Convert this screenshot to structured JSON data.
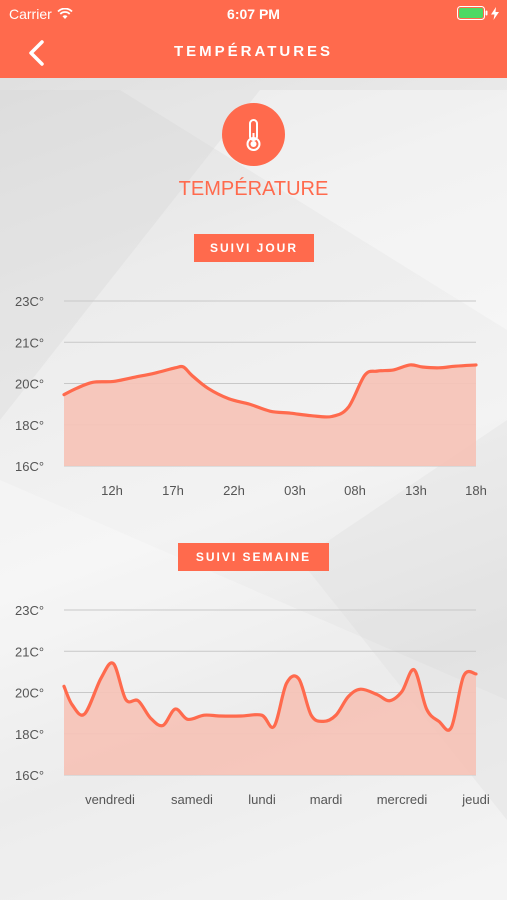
{
  "status_bar": {
    "carrier": "Carrier",
    "time": "6:07 PM"
  },
  "nav": {
    "title": "TEMPÉRATURES",
    "back_icon": "chevron-left-icon"
  },
  "hero": {
    "icon": "thermometer-icon",
    "title": "TEMPÉRATURE"
  },
  "colors": {
    "accent": "#ff6a4d",
    "fill": "#f5c4b8",
    "grid": "#c8c8c8"
  },
  "chart_data": [
    {
      "type": "area",
      "title": "SUIVI JOUR",
      "y_ticks": [
        "23C°",
        "21C°",
        "20C°",
        "18C°",
        "16C°"
      ],
      "x_ticks": [
        "12h",
        "17h",
        "22h",
        "03h",
        "08h",
        "13h",
        "18h"
      ],
      "ylim": [
        0,
        4
      ],
      "x_range": [
        0,
        100
      ],
      "points": [
        [
          0,
          1.73
        ],
        [
          3,
          1.88
        ],
        [
          7,
          2.03
        ],
        [
          12,
          2.05
        ],
        [
          17,
          2.15
        ],
        [
          22,
          2.25
        ],
        [
          27,
          2.38
        ],
        [
          29,
          2.4
        ],
        [
          31,
          2.2
        ],
        [
          35,
          1.88
        ],
        [
          40,
          1.63
        ],
        [
          45,
          1.5
        ],
        [
          50,
          1.33
        ],
        [
          55,
          1.28
        ],
        [
          60,
          1.22
        ],
        [
          65,
          1.2
        ],
        [
          69,
          1.42
        ],
        [
          73,
          2.2
        ],
        [
          76,
          2.3
        ],
        [
          80,
          2.33
        ],
        [
          84,
          2.45
        ],
        [
          87,
          2.4
        ],
        [
          91,
          2.38
        ],
        [
          95,
          2.42
        ],
        [
          100,
          2.45
        ]
      ]
    },
    {
      "type": "area",
      "title": "SUIVI SEMAINE",
      "y_ticks": [
        "23C°",
        "21C°",
        "20C°",
        "18C°",
        "16C°"
      ],
      "x_ticks": [
        "vendredi",
        "samedi",
        "lundi",
        "mardi",
        "mercredi",
        "jeudi"
      ],
      "ylim": [
        0,
        4
      ],
      "x_range": [
        0,
        100
      ],
      "points": [
        [
          0,
          2.15
        ],
        [
          2,
          1.7
        ],
        [
          5,
          1.48
        ],
        [
          9,
          2.35
        ],
        [
          12,
          2.7
        ],
        [
          15,
          1.83
        ],
        [
          18,
          1.8
        ],
        [
          21,
          1.38
        ],
        [
          24,
          1.2
        ],
        [
          27,
          1.6
        ],
        [
          30,
          1.35
        ],
        [
          34,
          1.45
        ],
        [
          38,
          1.43
        ],
        [
          43,
          1.43
        ],
        [
          48,
          1.45
        ],
        [
          51,
          1.18
        ],
        [
          54,
          2.22
        ],
        [
          57,
          2.33
        ],
        [
          60,
          1.45
        ],
        [
          63,
          1.3
        ],
        [
          66,
          1.45
        ],
        [
          69,
          1.9
        ],
        [
          72,
          2.08
        ],
        [
          76,
          1.95
        ],
        [
          79,
          1.8
        ],
        [
          82,
          2.02
        ],
        [
          85,
          2.55
        ],
        [
          88,
          1.6
        ],
        [
          91,
          1.3
        ],
        [
          94,
          1.15
        ],
        [
          97,
          2.4
        ],
        [
          100,
          2.45
        ]
      ]
    }
  ]
}
